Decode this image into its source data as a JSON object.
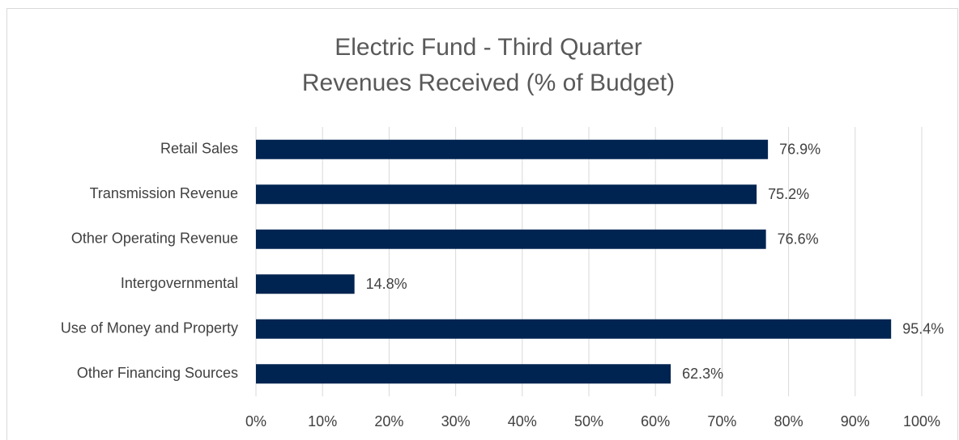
{
  "chart_data": {
    "type": "bar",
    "orientation": "horizontal",
    "title": "Electric Fund - Third Quarter",
    "subtitle": "Revenues Received (% of Budget)",
    "categories": [
      "Retail Sales",
      "Transmission Revenue",
      "Other Operating Revenue",
      "Intergovernmental",
      "Use of Money and Property",
      "Other Financing Sources"
    ],
    "values": [
      76.9,
      75.2,
      76.6,
      14.8,
      95.4,
      62.3
    ],
    "value_labels": [
      "76.9%",
      "75.2%",
      "76.6%",
      "14.8%",
      "95.4%",
      "62.3%"
    ],
    "color": "#002451",
    "xlim": [
      0,
      100
    ],
    "xticks": [
      {
        "value": 0,
        "label": "0%"
      },
      {
        "value": 10,
        "label": "10%"
      },
      {
        "value": 20,
        "label": "20%"
      },
      {
        "value": 30,
        "label": "30%"
      },
      {
        "value": 40,
        "label": "40%"
      },
      {
        "value": 50,
        "label": "50%"
      },
      {
        "value": 60,
        "label": "60%"
      },
      {
        "value": 70,
        "label": "70%"
      },
      {
        "value": 80,
        "label": "80%"
      },
      {
        "value": 90,
        "label": "90%"
      },
      {
        "value": 100,
        "label": "100%"
      }
    ],
    "grid": true
  }
}
